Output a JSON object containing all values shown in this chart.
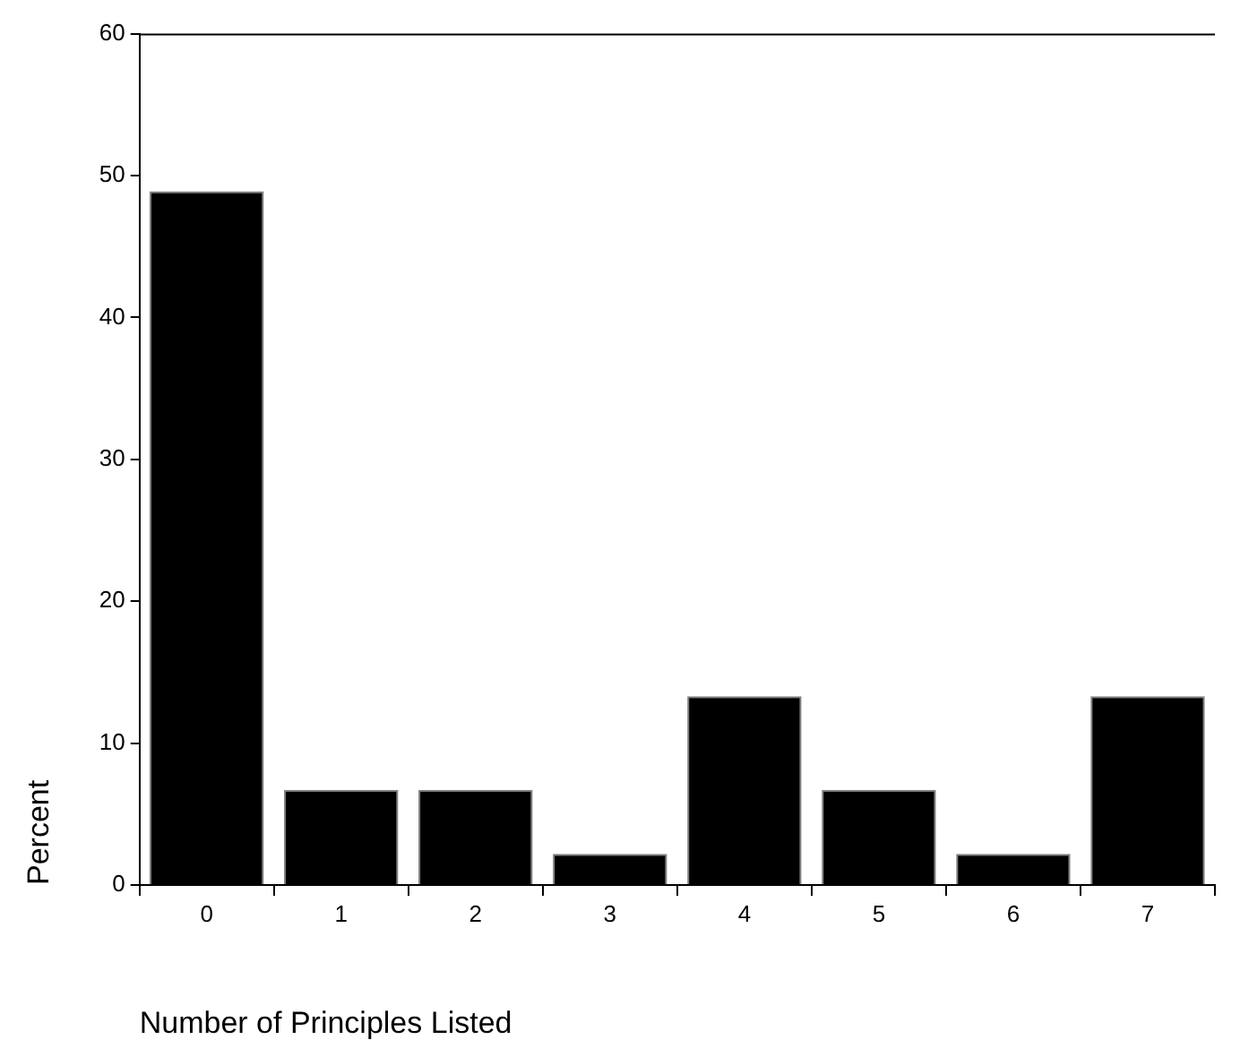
{
  "chart_data": {
    "type": "bar",
    "xlabel": "Number of Principles Listed",
    "ylabel": "Percent",
    "categories": [
      "0",
      "1",
      "2",
      "3",
      "4",
      "5",
      "6",
      "7"
    ],
    "values": [
      48.9,
      6.7,
      6.7,
      2.2,
      13.3,
      6.7,
      2.2,
      13.3
    ],
    "color": "#000000",
    "ylim": [
      0,
      60
    ],
    "yticks": [
      0,
      10,
      20,
      30,
      40,
      50,
      60
    ],
    "grid": false,
    "legend": false
  }
}
